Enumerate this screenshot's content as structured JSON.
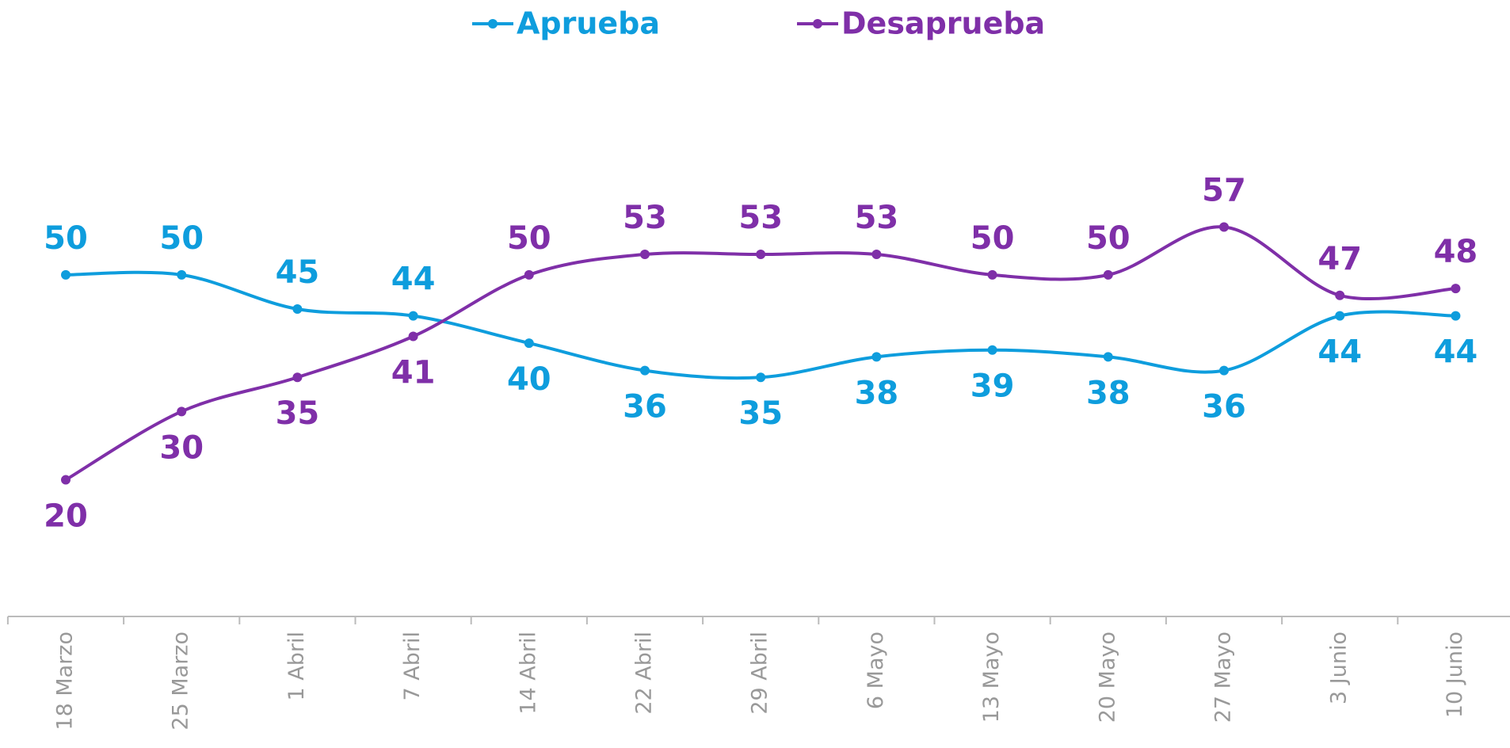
{
  "chart_data": {
    "type": "line",
    "categories": [
      "18 Marzo",
      "25 Marzo",
      "1 Abril",
      "7 Abril",
      "14 Abril",
      "22 Abril",
      "29 Abril",
      "6 Mayo",
      "13 Mayo",
      "20 Mayo",
      "27 Mayo",
      "3 Junio",
      "10 Junio"
    ],
    "series": [
      {
        "name": "Aprueba",
        "color": "#0e9ddd",
        "values": [
          50,
          50,
          45,
          44,
          40,
          36,
          35,
          38,
          39,
          38,
          36,
          44,
          44
        ]
      },
      {
        "name": "Desaprueba",
        "color": "#7f2fa8",
        "values": [
          20,
          30,
          35,
          41,
          50,
          53,
          53,
          53,
          50,
          50,
          57,
          47,
          48
        ]
      }
    ],
    "ylim": [
      0,
      90
    ],
    "grid": false,
    "legend": "top"
  }
}
